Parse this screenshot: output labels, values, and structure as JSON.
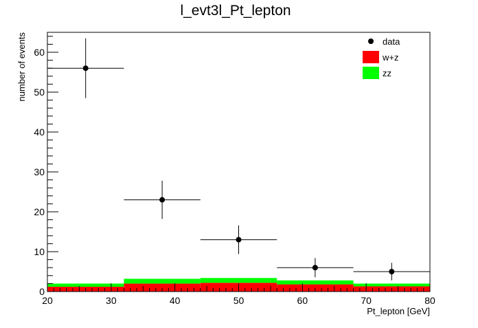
{
  "chart_data": {
    "type": "bar",
    "title": "l_evt3l_Pt_lepton",
    "xlabel": "Pt_lepton [GeV]",
    "ylabel": "number of events",
    "xlim": [
      20,
      80
    ],
    "ylim": [
      0,
      65
    ],
    "x_ticks": [
      20,
      30,
      40,
      50,
      60,
      70,
      80
    ],
    "y_ticks": [
      0,
      10,
      20,
      30,
      40,
      50,
      60
    ],
    "bin_edges": [
      20,
      32,
      44,
      56,
      68,
      80
    ],
    "stacked": true,
    "series": [
      {
        "name": "w+z",
        "color": "#ff0000",
        "values": [
          1.2,
          2.0,
          2.2,
          1.8,
          1.3
        ]
      },
      {
        "name": "zz",
        "color": "#00ff00",
        "values": [
          0.8,
          1.2,
          1.2,
          1.0,
          0.7
        ]
      }
    ],
    "data": {
      "name": "data",
      "color": "#000000",
      "x": [
        26,
        38,
        50,
        62,
        74
      ],
      "y": [
        56,
        23,
        13,
        6,
        5
      ],
      "yerr_low": [
        7.5,
        4.8,
        3.6,
        2.4,
        2.2
      ],
      "yerr_high": [
        7.5,
        4.8,
        3.6,
        2.4,
        2.2
      ]
    },
    "legend_position": "top-right",
    "grid": false
  }
}
